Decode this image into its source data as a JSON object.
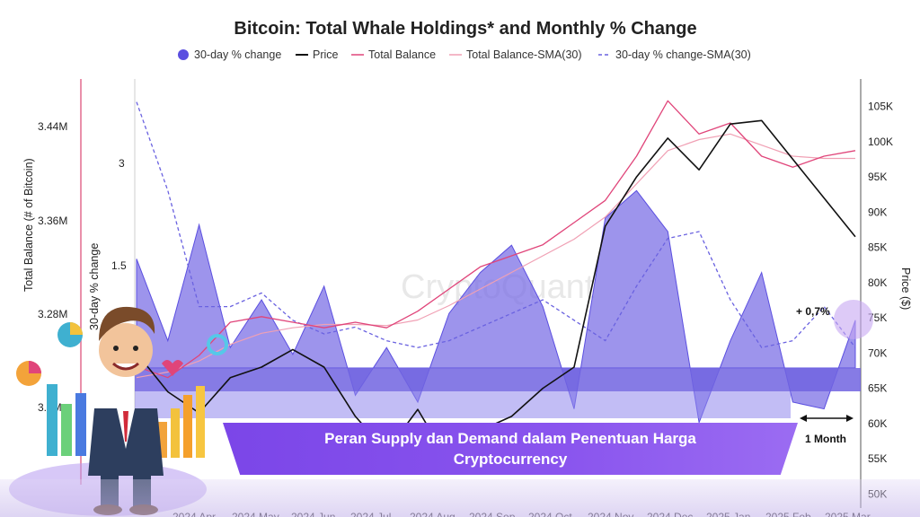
{
  "chart_data": {
    "type": "line",
    "title": "Bitcoin: Total Whale Holdings* and Monthly % Change",
    "legend": {
      "placement": "top",
      "items": [
        {
          "label": "30-day % change",
          "style": "filled-circle",
          "color": "#5b4fe0"
        },
        {
          "label": "Price",
          "style": "line",
          "color": "#111111"
        },
        {
          "label": "Total Balance",
          "style": "line",
          "color": "#e0457a"
        },
        {
          "label": "Total Balance-SMA(30)",
          "style": "line",
          "color": "#f0a0b4"
        },
        {
          "label": "30-day % change-SMA(30)",
          "style": "dashed",
          "color": "#6a62e0"
        }
      ]
    },
    "axes": {
      "left_outer": {
        "title": "Total Balance (# of Bitcoin)",
        "ticks": [
          "3.44M",
          "3.36M",
          "3.28M",
          "3.2M"
        ],
        "values": [
          3440000,
          3360000,
          3280000,
          3200000
        ],
        "range": [
          3180000,
          3480000
        ]
      },
      "left_inner": {
        "title": "30-day % change",
        "ticks": [
          "3",
          "1.5"
        ],
        "values": [
          3,
          1.5
        ]
      },
      "right": {
        "title": "Price ($)",
        "ticks": [
          "105K",
          "100K",
          "95K",
          "90K",
          "85K",
          "80K",
          "75K",
          "70K",
          "65K",
          "60K",
          "55K",
          "50K"
        ],
        "values": [
          105000,
          100000,
          95000,
          90000,
          85000,
          80000,
          75000,
          70000,
          65000,
          60000,
          55000,
          50000
        ],
        "range": [
          48000,
          108000
        ]
      },
      "x": {
        "ticks": [
          "2024 Apr",
          "2024 May",
          "2024 Jun",
          "2024 Jul",
          "2024 Aug",
          "2024 Sep",
          "2024 Oct",
          "2024 Nov",
          "2024 Dec",
          "2025 Jan",
          "2025 Feb",
          "2025 Mar"
        ]
      }
    },
    "x": [
      "2024 Apr",
      "2024 Apr",
      "2024 May",
      "2024 May",
      "2024 Jun",
      "2024 Jun",
      "2024 Jul",
      "2024 Jul",
      "2024 Aug",
      "2024 Aug",
      "2024 Sep",
      "2024 Sep",
      "2024 Oct",
      "2024 Oct",
      "2024 Nov",
      "2024 Nov",
      "2024 Dec",
      "2024 Dec",
      "2025 Jan",
      "2025 Jan",
      "2025 Feb",
      "2025 Feb",
      "2025 Mar",
      "2025 Mar"
    ],
    "series": [
      {
        "name": "Price",
        "values": [
          70000,
          64500,
          61500,
          66500,
          68000,
          70500,
          68000,
          61000,
          56000,
          62000,
          54500,
          59000,
          61000,
          65000,
          68000,
          88000,
          95000,
          100500,
          96000,
          102500,
          103000,
          97500,
          92000,
          86500
        ]
      },
      {
        "name": "Total Balance",
        "values": [
          3230000,
          3220000,
          3240000,
          3270000,
          3275000,
          3270000,
          3265000,
          3270000,
          3265000,
          3280000,
          3300000,
          3320000,
          3330000,
          3340000,
          3360000,
          3380000,
          3420000,
          3470000,
          3440000,
          3450000,
          3420000,
          3410000,
          3420000,
          3425000
        ]
      },
      {
        "name": "Total Balance-SMA(30)",
        "values": [
          3220000,
          3225000,
          3235000,
          3250000,
          3260000,
          3265000,
          3268000,
          3268000,
          3267000,
          3272000,
          3285000,
          3300000,
          3315000,
          3330000,
          3345000,
          3365000,
          3395000,
          3425000,
          3435000,
          3440000,
          3430000,
          3420000,
          3418000,
          3418000
        ]
      },
      {
        "name": "30-day % change",
        "values": [
          1.6,
          0.4,
          2.1,
          0.3,
          1.0,
          0.2,
          1.2,
          -0.4,
          0.3,
          -0.5,
          0.8,
          1.4,
          1.8,
          0.9,
          -0.6,
          2.2,
          2.6,
          2.0,
          -0.8,
          0.4,
          1.4,
          -0.5,
          -0.6,
          0.7
        ]
      },
      {
        "name": "30-day % change-SMA(30)",
        "values": [
          3.9,
          2.6,
          0.9,
          0.9,
          1.1,
          0.7,
          0.5,
          0.6,
          0.4,
          0.3,
          0.4,
          0.6,
          0.8,
          1.0,
          0.7,
          0.4,
          1.2,
          1.9,
          2.0,
          1.0,
          0.3,
          0.4,
          0.9,
          0.3
        ]
      }
    ],
    "annotations": [
      "+ 0,7%",
      "1 Month"
    ],
    "watermark": "CryptoQuant"
  },
  "banner": {
    "line1": "Peran Supply dan Demand dalam Penentuan Harga",
    "line2": "Cryptocurrency"
  }
}
